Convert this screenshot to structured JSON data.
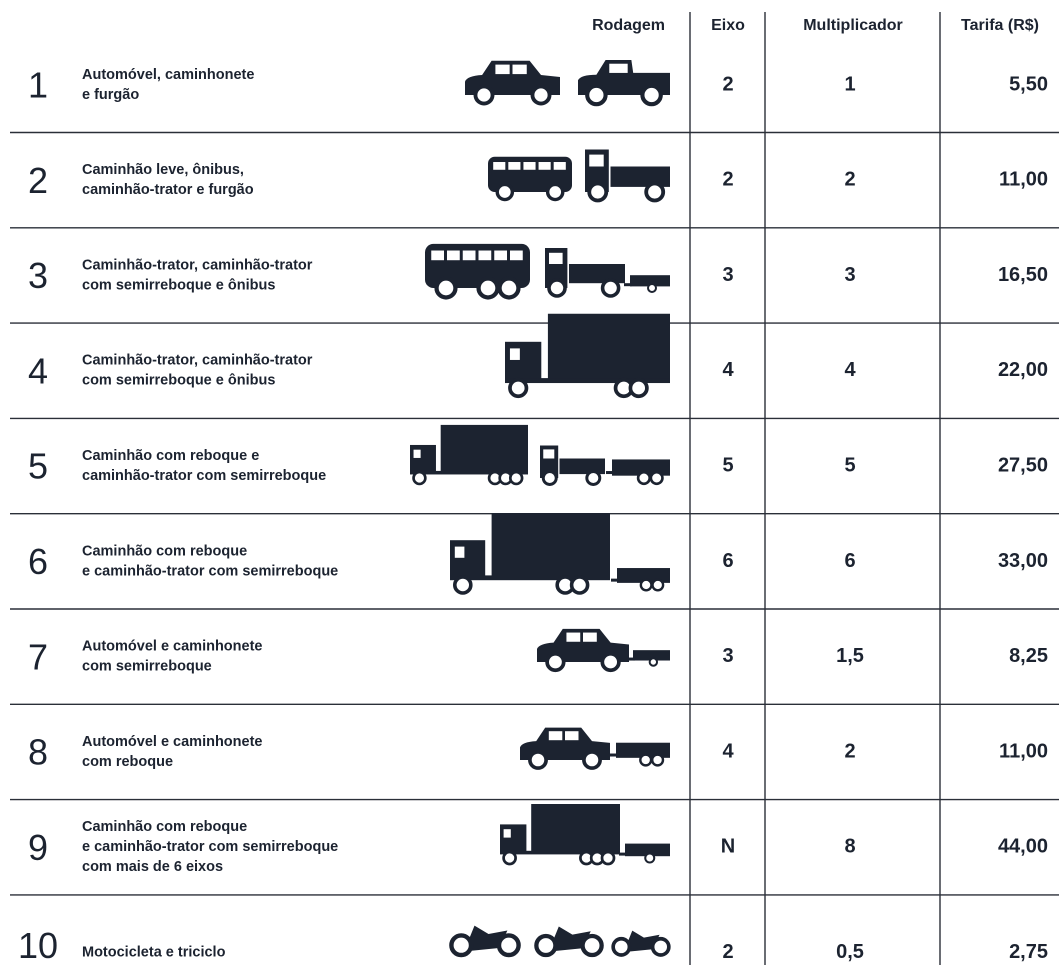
{
  "header": {
    "columns": [
      "Rodagem",
      "Eixo",
      "Multiplicador",
      "Tarifa (R$)"
    ]
  },
  "table": {
    "rows": [
      {
        "category": "1",
        "description": [
          "Automóvel, caminhonete",
          "e furgão"
        ],
        "axles": "2",
        "multiplier": "1",
        "fare": "5,50"
      },
      {
        "category": "2",
        "description": [
          "Caminhão leve, ônibus,",
          "caminhão-trator e furgão"
        ],
        "axles": "2",
        "multiplier": "2",
        "fare": "11,00"
      },
      {
        "category": "3",
        "description": [
          "Caminhão-trator, caminhão-trator",
          "com semirreboque e ônibus"
        ],
        "axles": "3",
        "multiplier": "3",
        "fare": "16,50"
      },
      {
        "category": "4",
        "description": [
          "Caminhão-trator, caminhão-trator",
          "com semirreboque e ônibus"
        ],
        "axles": "4",
        "multiplier": "4",
        "fare": "22,00"
      },
      {
        "category": "5",
        "description": [
          "Caminhão com reboque e",
          "caminhão-trator com semirreboque"
        ],
        "axles": "5",
        "multiplier": "5",
        "fare": "27,50"
      },
      {
        "category": "6",
        "description": [
          "Caminhão com reboque",
          "e caminhão-trator com semirreboque"
        ],
        "axles": "6",
        "multiplier": "6",
        "fare": "33,00"
      },
      {
        "category": "7",
        "description": [
          "Automóvel e caminhonete",
          "com semirreboque"
        ],
        "axles": "3",
        "multiplier": "1,5",
        "fare": "8,25"
      },
      {
        "category": "8",
        "description": [
          "Automóvel e caminhonete",
          "com reboque"
        ],
        "axles": "4",
        "multiplier": "2",
        "fare": "11,00"
      },
      {
        "category": "9",
        "description": [
          "Caminhão com reboque",
          "e caminhão-trator com semirreboque",
          "com mais de 6 eixos"
        ],
        "axles": "N",
        "multiplier": "8",
        "fare": "44,00"
      },
      {
        "category": "10",
        "description": [
          "Motocicleta e triciclo"
        ],
        "axles": "2",
        "multiplier": "0,5",
        "fare": "2,75"
      }
    ]
  }
}
